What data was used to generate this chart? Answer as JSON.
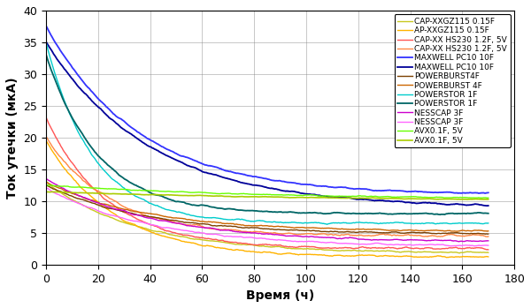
{
  "xlabel": "Время (ч)",
  "ylabel": "Ток утечки (мкА)",
  "xlim": [
    0,
    180
  ],
  "ylim": [
    0,
    40
  ],
  "xticks": [
    0,
    20,
    40,
    60,
    80,
    100,
    120,
    140,
    160,
    180
  ],
  "yticks": [
    0,
    5,
    10,
    15,
    20,
    25,
    30,
    35,
    40
  ],
  "series": [
    {
      "label": "CAP-XXGZ115 0.15F",
      "color": "#c8c820",
      "lw": 1.0,
      "ls": "-",
      "start": 13.0,
      "decay": 0.028,
      "final": 1.8,
      "noise": 0.2
    },
    {
      "label": "AP-XXGZ115 0.15F",
      "color": "#ffb300",
      "lw": 1.0,
      "ls": "-",
      "start": 19.5,
      "decay": 0.038,
      "final": 1.2,
      "noise": 0.25
    },
    {
      "label": "CAP-XX HS230 1.2F, 5V",
      "color": "#ff5555",
      "lw": 1.0,
      "ls": "-",
      "start": 23.0,
      "decay": 0.042,
      "final": 2.5,
      "noise": 0.3
    },
    {
      "label": "CAP-XX HS230 1.2F, 5V",
      "color": "#ff8844",
      "lw": 1.0,
      "ls": "-",
      "start": 20.0,
      "decay": 0.04,
      "final": 4.5,
      "noise": 0.3
    },
    {
      "label": "MAXWELL PC10 10F",
      "color": "#3333ff",
      "lw": 1.3,
      "ls": "-",
      "start": 37.5,
      "decay": 0.028,
      "final": 11.0,
      "noise": 0.2
    },
    {
      "label": "MAXWELL PC10 10F",
      "color": "#000099",
      "lw": 1.3,
      "ls": "-",
      "start": 35.0,
      "decay": 0.025,
      "final": 9.0,
      "noise": 0.2
    },
    {
      "label": "POWERBURST4F",
      "color": "#7b3f00",
      "lw": 1.0,
      "ls": "-",
      "start": 12.5,
      "decay": 0.026,
      "final": 4.8,
      "noise": 0.2
    },
    {
      "label": "POWERBURST 4F",
      "color": "#cc6600",
      "lw": 1.0,
      "ls": "-",
      "start": 13.0,
      "decay": 0.026,
      "final": 5.2,
      "noise": 0.2
    },
    {
      "label": "POWERSTOR 1F",
      "color": "#00cccc",
      "lw": 1.0,
      "ls": "-",
      "start": 35.0,
      "decay": 0.055,
      "final": 6.5,
      "noise": 0.25
    },
    {
      "label": "POWERSTOR 1F",
      "color": "#006666",
      "lw": 1.3,
      "ls": "-",
      "start": 33.0,
      "decay": 0.05,
      "final": 8.0,
      "noise": 0.2
    },
    {
      "label": "NESSCAP 3F",
      "color": "#cc00cc",
      "lw": 1.0,
      "ls": "-",
      "start": 13.5,
      "decay": 0.024,
      "final": 3.5,
      "noise": 0.2
    },
    {
      "label": "NESSCAP 3F",
      "color": "#ff66ff",
      "lw": 1.0,
      "ls": "-",
      "start": 12.0,
      "decay": 0.024,
      "final": 2.8,
      "noise": 0.2
    },
    {
      "label": "AVX0.1F, 5V",
      "color": "#66ff00",
      "lw": 1.0,
      "ls": "-",
      "start": 12.5,
      "decay": 0.012,
      "final": 10.2,
      "noise": 0.15
    },
    {
      "label": "AVX0.1F, 5V",
      "color": "#aacc00",
      "lw": 1.2,
      "ls": "-",
      "start": 11.5,
      "decay": 0.01,
      "final": 10.0,
      "noise": 0.1
    }
  ],
  "bg_color": "#ffffff",
  "legend_fontsize": 6.5,
  "axis_fontsize": 10,
  "tick_fontsize": 9
}
